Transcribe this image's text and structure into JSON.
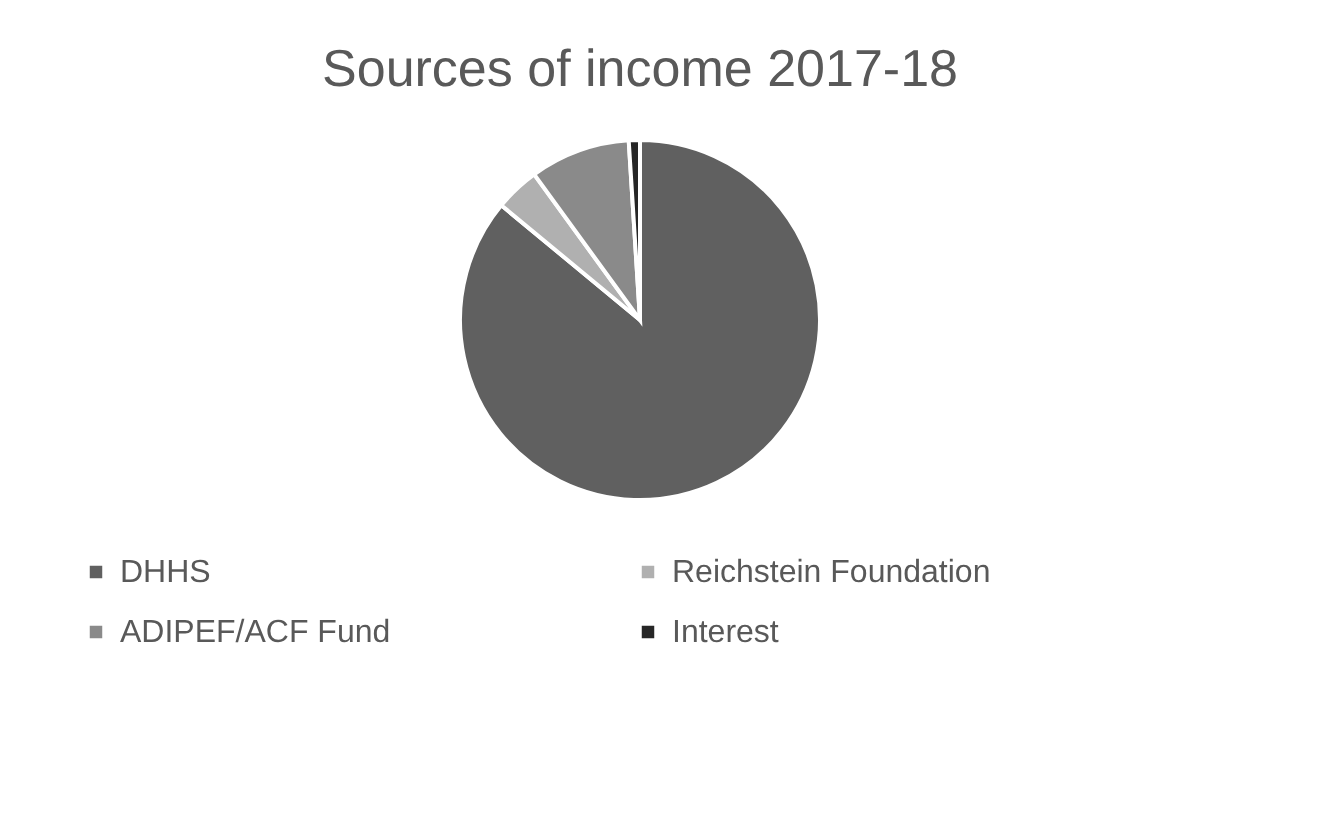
{
  "chart_data": {
    "type": "pie",
    "title": "Sources of income 2017-18",
    "categories": [
      "DHHS",
      "Reichstein Foundation",
      "ADIPEF/ACF Fund",
      "Interest"
    ],
    "values": [
      86,
      4,
      9,
      1
    ],
    "colors": [
      "#606060",
      "#b0b0b0",
      "#8a8a8a",
      "#262626"
    ],
    "legend": "bottom"
  }
}
